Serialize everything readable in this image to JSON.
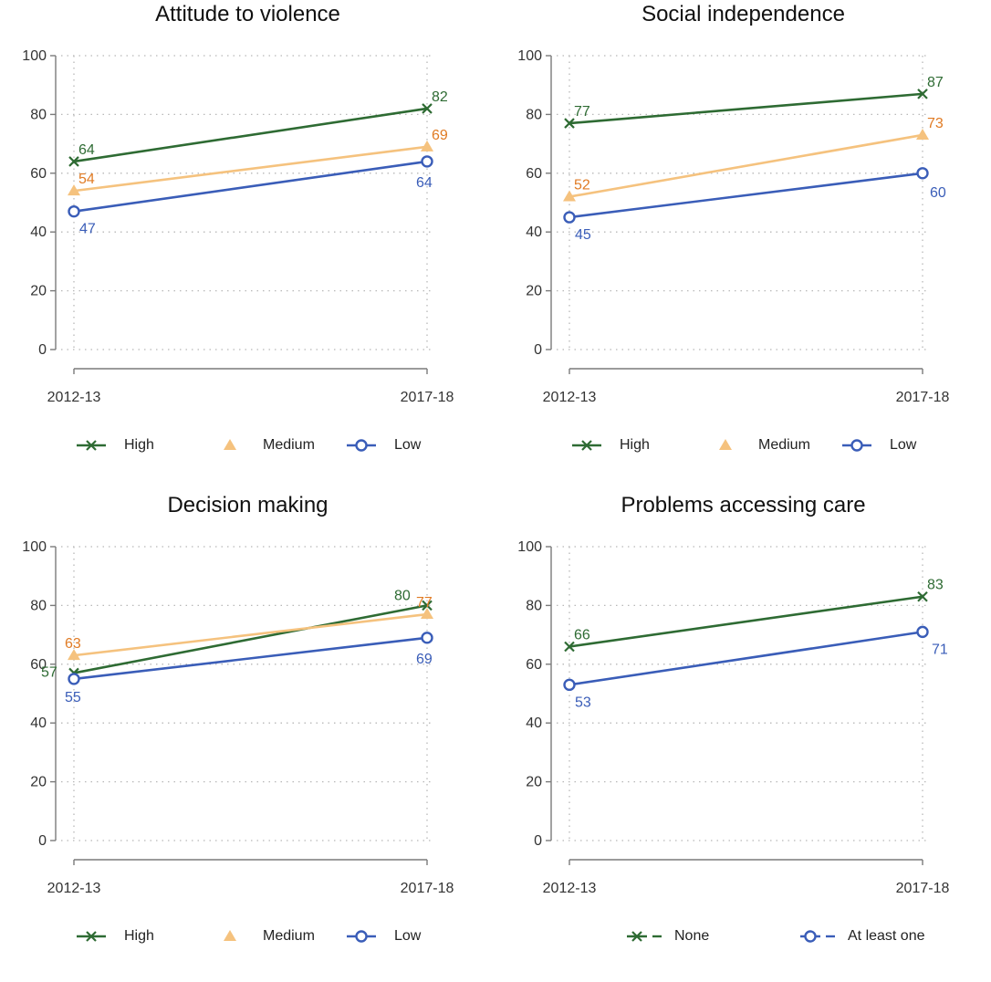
{
  "chart_data": [
    {
      "type": "line",
      "title": "Attitude to violence",
      "x": [
        "2012-13",
        "2017-18"
      ],
      "ylim": [
        0,
        100
      ],
      "yticks": [
        0,
        20,
        40,
        60,
        80,
        100
      ],
      "grid": true,
      "legend_position": "bottom",
      "series": [
        {
          "name": "High",
          "values": [
            64,
            82
          ],
          "labels": [
            "64",
            "82"
          ],
          "color": "#2e6b33",
          "marker": "x-mark",
          "dash": false
        },
        {
          "name": "Medium",
          "values": [
            54,
            69
          ],
          "labels": [
            "54",
            "69"
          ],
          "color": "#f5c27e",
          "label_color": "#e07b24",
          "marker": "triangle",
          "dash": false
        },
        {
          "name": "Low",
          "values": [
            47,
            64
          ],
          "labels": [
            "47",
            "64"
          ],
          "color": "#3a5db8",
          "marker": "circle",
          "dash": false
        }
      ]
    },
    {
      "type": "line",
      "title": "Social independence",
      "x": [
        "2012-13",
        "2017-18"
      ],
      "ylim": [
        0,
        100
      ],
      "yticks": [
        0,
        20,
        40,
        60,
        80,
        100
      ],
      "grid": true,
      "legend_position": "bottom",
      "series": [
        {
          "name": "High",
          "values": [
            77,
            87
          ],
          "labels": [
            "77",
            "87"
          ],
          "color": "#2e6b33",
          "marker": "x-mark",
          "dash": false
        },
        {
          "name": "Medium",
          "values": [
            52,
            73
          ],
          "labels": [
            "52",
            "73"
          ],
          "color": "#f5c27e",
          "label_color": "#e07b24",
          "marker": "triangle",
          "dash": false
        },
        {
          "name": "Low",
          "values": [
            45,
            60
          ],
          "labels": [
            "45",
            "60"
          ],
          "color": "#3a5db8",
          "marker": "circle",
          "dash": false
        }
      ]
    },
    {
      "type": "line",
      "title": "Decision making",
      "x": [
        "2012-13",
        "2017-18"
      ],
      "ylim": [
        0,
        100
      ],
      "yticks": [
        0,
        20,
        40,
        60,
        80,
        100
      ],
      "grid": true,
      "legend_position": "bottom",
      "series": [
        {
          "name": "High",
          "values": [
            57,
            80
          ],
          "labels": [
            "57",
            "80"
          ],
          "color": "#2e6b33",
          "marker": "x-mark",
          "dash": false
        },
        {
          "name": "Medium",
          "values": [
            63,
            77
          ],
          "labels": [
            "63",
            "77"
          ],
          "color": "#f5c27e",
          "label_color": "#e07b24",
          "marker": "triangle",
          "dash": false
        },
        {
          "name": "Low",
          "values": [
            55,
            69
          ],
          "labels": [
            "55",
            "69"
          ],
          "color": "#3a5db8",
          "marker": "circle",
          "dash": false
        }
      ]
    },
    {
      "type": "line",
      "title": "Problems accessing care",
      "x": [
        "2012-13",
        "2017-18"
      ],
      "ylim": [
        0,
        100
      ],
      "yticks": [
        0,
        20,
        40,
        60,
        80,
        100
      ],
      "grid": true,
      "legend_position": "bottom",
      "series": [
        {
          "name": "None",
          "values": [
            66,
            83
          ],
          "labels": [
            "66",
            "83"
          ],
          "color": "#2e6b33",
          "marker": "x-mark",
          "dash": true
        },
        {
          "name": "At least one",
          "values": [
            53,
            71
          ],
          "labels": [
            "53",
            "71"
          ],
          "color": "#3a5db8",
          "marker": "circle",
          "dash": true
        }
      ]
    }
  ]
}
